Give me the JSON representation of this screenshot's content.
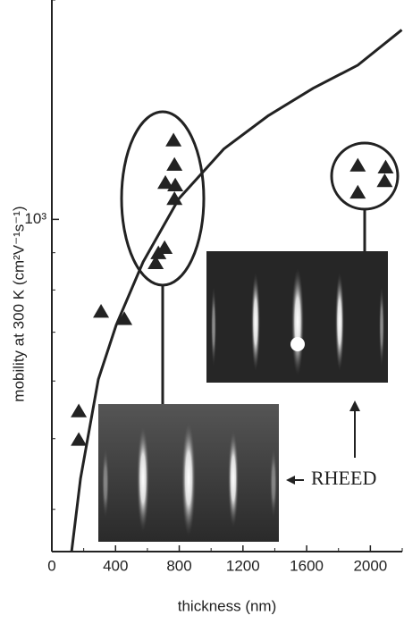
{
  "chart_data": {
    "type": "scatter",
    "x_label": "thickness (nm)",
    "y_label": "mobility at 300 K (cm²V⁻¹s⁻¹)",
    "annotation": "RHEED",
    "xlim": [
      0,
      2200
    ],
    "xticks": [
      0,
      400,
      800,
      1200,
      1600,
      2000
    ],
    "x_minor_ticks": [
      200,
      600,
      1000,
      1400,
      1800,
      2200
    ],
    "ylim": [
      350,
      2000
    ],
    "log_y": true,
    "yticks": [
      {
        "value": 1000,
        "label": "10³"
      }
    ],
    "y_minor_ticks": [
      400,
      500,
      600,
      700,
      800,
      900,
      2000
    ],
    "points": {
      "color": "#222222",
      "x": [
        169,
        169,
        309,
        455,
        652,
        669,
        708,
        764,
        770,
        713,
        775,
        770,
        1921,
        2096,
        1921,
        2090
      ],
      "values": [
        546,
        499,
        748,
        731,
        872,
        900,
        915,
        1285,
        1190,
        1124,
        1115,
        1068,
        1187,
        1180,
        1090,
        1130
      ]
    },
    "fit": {
      "color": "#222222",
      "x": [
        124,
        180,
        292,
        404,
        573,
        798,
        1079,
        1360,
        1640,
        1921,
        2197
      ],
      "values": [
        350,
        441,
        603,
        716,
        874,
        1068,
        1249,
        1388,
        1513,
        1628,
        1820
      ]
    }
  }
}
